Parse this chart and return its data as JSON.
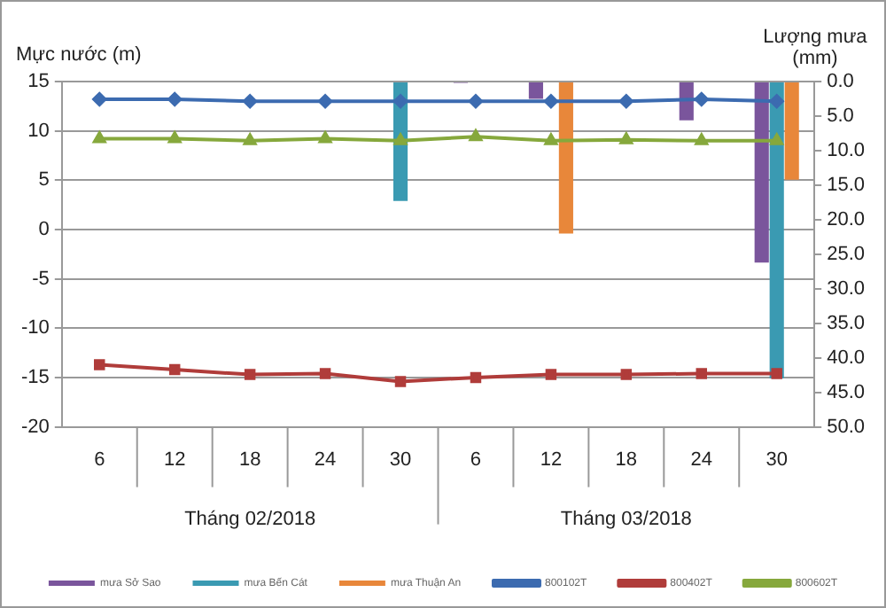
{
  "chart_data": {
    "type": "bar",
    "ylabel": "Mực nước (m)",
    "y2label": "Lượng mưa (mm)",
    "categories": [
      "6",
      "12",
      "18",
      "24",
      "30",
      "6",
      "12",
      "18",
      "24",
      "30"
    ],
    "annotations": [
      "Tháng 02/2018",
      "Tháng 03/2018"
    ],
    "series": [
      {
        "name": "mưa Sở Sao",
        "color": "#7a559c",
        "axis": "y2",
        "values": [
          null,
          null,
          null,
          null,
          null,
          0.2,
          2.5,
          null,
          5.6,
          26.2
        ]
      },
      {
        "name": "mưa Bến Cát",
        "color": "#3a9ab2",
        "axis": "y2",
        "values": [
          null,
          null,
          null,
          null,
          17.3,
          null,
          null,
          null,
          null,
          43
        ]
      },
      {
        "name": "mưa Thuận An",
        "color": "#e8873a",
        "axis": "y2",
        "values": [
          null,
          null,
          null,
          null,
          null,
          null,
          22,
          null,
          null,
          14.2
        ]
      },
      {
        "type": "line",
        "name": "800102T",
        "color": "#3c6bb0",
        "marker": "diamond",
        "values": [
          13.2,
          13.2,
          13.0,
          13.0,
          13.0,
          13.0,
          13.0,
          13.0,
          13.2,
          13.0
        ]
      },
      {
        "type": "line",
        "name": "800402T",
        "color": "#b03c3a",
        "marker": "square",
        "values": [
          -13.7,
          -14.2,
          -14.7,
          -14.6,
          -15.4,
          -15.0,
          -14.7,
          -14.7,
          -14.6,
          -14.6
        ]
      },
      {
        "type": "line",
        "name": "800602T",
        "color": "#86a83c",
        "marker": "triangle",
        "values": [
          9.2,
          9.2,
          9.0,
          9.2,
          9.0,
          9.4,
          9.0,
          9.1,
          9.0,
          9.0
        ]
      }
    ],
    "ylim": [
      -20,
      15
    ],
    "yticks": [
      -20,
      -15,
      -10,
      -5,
      0,
      5,
      10,
      15
    ],
    "y2lim": [
      50,
      0
    ],
    "y2ticks": [
      {
        "value": 0,
        "label": "0.0"
      },
      {
        "value": 5,
        "label": "5.0"
      },
      {
        "value": 10,
        "label": "10.0"
      },
      {
        "value": 15,
        "label": "15.0"
      },
      {
        "value": 20,
        "label": "20.0"
      },
      {
        "value": 25,
        "label": "25.0"
      },
      {
        "value": 30,
        "label": "30.0"
      },
      {
        "value": 35,
        "label": "35.0"
      },
      {
        "value": 40,
        "label": "40.0"
      },
      {
        "value": 45,
        "label": "45.0"
      },
      {
        "value": 50,
        "label": "50.0"
      }
    ],
    "grid": "y",
    "legend": "bottom"
  }
}
